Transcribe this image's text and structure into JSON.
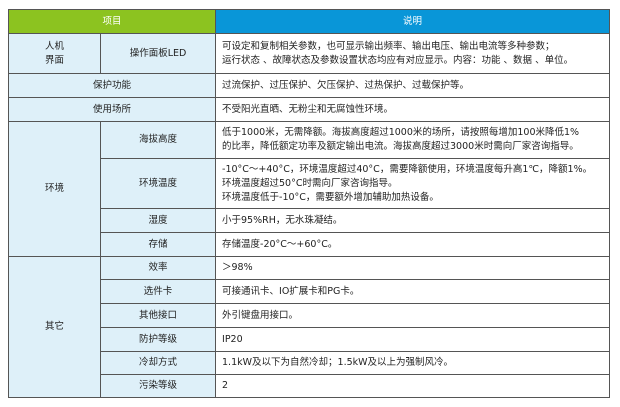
{
  "header": {
    "item": "项目",
    "desc": "说明"
  },
  "rows": {
    "hmi": {
      "group": "人机\n界面",
      "name": "操作面板LED",
      "desc": "可设定和复制相关参数，也可显示输出频率、输出电压、输出电流等多种参数；\n运行状态 、故障状态及参数设置状态均应有对应显示。内容：功能 、数据 、单位。"
    },
    "protect": {
      "name": "保护功能",
      "desc": "过流保护、过压保护、欠压保护、过热保护、过载保护等。"
    },
    "place": {
      "name": "使用场所",
      "desc": "不受阳光直晒、无粉尘和无腐蚀性环境。"
    },
    "env": {
      "group": "环境",
      "items": [
        {
          "name": "海拔高度",
          "desc": "低于1000米，无需降额。海拔高度超过1000米的场所，请按照每增加100米降低1%\n的比率，降低额定功率及额定输出电流。海拔高度超过3000米时需向厂家咨询指导。"
        },
        {
          "name": "环境温度",
          "desc": "-10°C～+40°C，环境温度超过40°C，需要降额使用，环境温度每升高1℃，降额1%。\n环境温度超过50°C时需向厂家咨询指导。\n环境温度低于-10°C，需要额外增加辅助加热设备。"
        },
        {
          "name": "湿度",
          "desc": "小于95%RH，无水珠凝结。"
        },
        {
          "name": "存储",
          "desc": "存储温度-20°C～+60°C。"
        }
      ]
    },
    "other": {
      "group": "其它",
      "items": [
        {
          "name": "效率",
          "desc": "＞98%"
        },
        {
          "name": "选件卡",
          "desc": "可接通讯卡、IO扩展卡和PG卡。"
        },
        {
          "name": "其他接口",
          "desc": "外引键盘用接口。"
        },
        {
          "name": "防护等级",
          "desc": "IP20"
        },
        {
          "name": "冷却方式",
          "desc": "1.1kW及以下为自然冷却；1.5kW及以上为强制风冷。"
        },
        {
          "name": "污染等级",
          "desc": "2"
        }
      ]
    }
  },
  "colors": {
    "header_left": "#8cc320",
    "header_right": "#0996d8",
    "key_cell": "#def0f9"
  }
}
